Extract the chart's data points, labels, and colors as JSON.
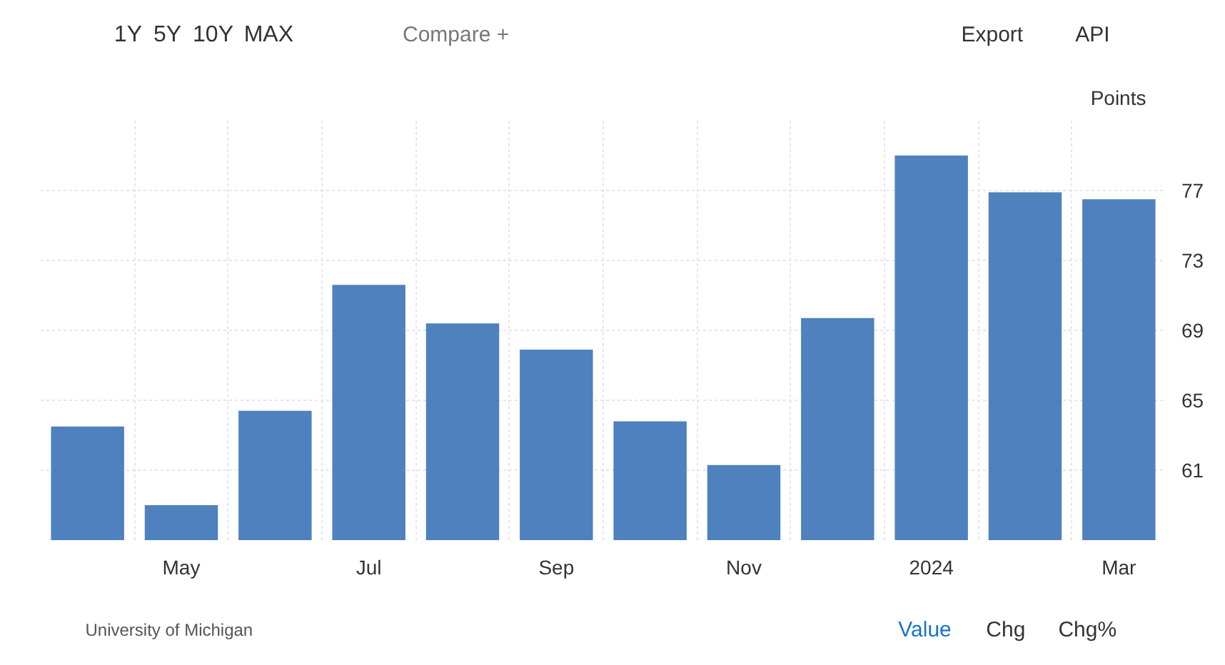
{
  "chart_data": {
    "type": "bar",
    "ylabel": "Points",
    "categories": [
      null,
      "May",
      null,
      "Jul",
      null,
      "Sep",
      null,
      "Nov",
      null,
      "2024",
      null,
      "Mar"
    ],
    "values": [
      63.5,
      59.0,
      64.4,
      71.6,
      69.4,
      67.9,
      63.8,
      61.3,
      69.7,
      79.0,
      76.9,
      76.5
    ],
    "color": "#4e81bd",
    "ylim": [
      57,
      81
    ],
    "yticks": [
      61,
      65,
      69,
      73,
      77
    ],
    "grid": true,
    "legend": false,
    "annotations": [
      "University of Michigan",
      "Value",
      "Chg",
      "Chg%",
      "1Y",
      "5Y",
      "10Y",
      "MAX",
      "Compare +",
      "Export",
      "API"
    ]
  }
}
